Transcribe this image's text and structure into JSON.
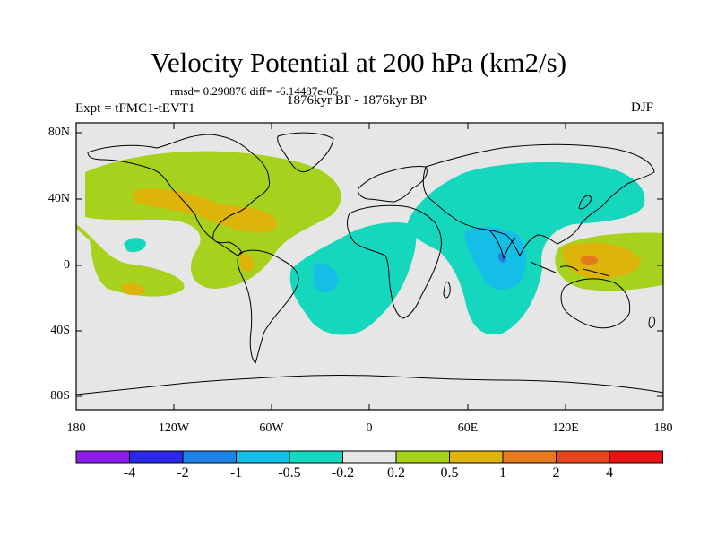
{
  "figure": {
    "title": "Velocity Potential at 200 hPa (km2/s)",
    "stats": "rmsd= 0.290876 diff= -6.14487e-05",
    "period": "1876kyr BP - 1876kyr BP",
    "experiment": "Expt = tFMC1-tEVT1",
    "season": "DJF"
  },
  "axes": {
    "lat_labels": [
      "80N",
      "40N",
      "0",
      "40S",
      "80S"
    ],
    "lon_labels": [
      "180",
      "120W",
      "60W",
      "0",
      "60E",
      "120E",
      "180"
    ]
  },
  "colorbar": {
    "labels": [
      "-4",
      "-2",
      "-1",
      "-0.5",
      "-0.2",
      "0.2",
      "0.5",
      "1",
      "2",
      "4"
    ],
    "colors": [
      "#8b1ee6",
      "#2a2ae6",
      "#1e82e6",
      "#14bee6",
      "#14d7be",
      "#e6e6e6",
      "#a6d21e",
      "#dcb40a",
      "#e6781e",
      "#e6461e",
      "#e61414"
    ]
  },
  "legend_colors": {
    "background": "#e6e6e6",
    "pos_02": "#a6d21e",
    "pos_05": "#dcb40a",
    "pos_1": "#e6781e",
    "neg_02": "#14d7be",
    "neg_05": "#14bee6"
  }
}
